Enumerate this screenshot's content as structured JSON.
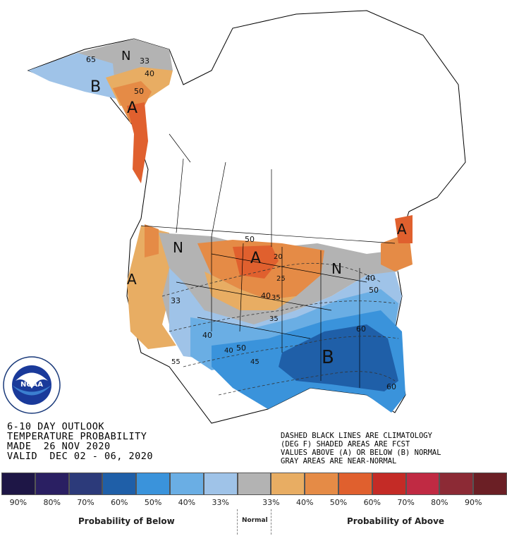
{
  "title": {
    "line1": "6-10 DAY OUTLOOK",
    "line2": "TEMPERATURE PROBABILITY",
    "line3": "MADE  26 NOV 2020",
    "line4": "VALID  DEC 02 - 06, 2020"
  },
  "note": {
    "line1": "DASHED BLACK LINES ARE CLIMATOLOGY",
    "line2": "(DEG F) SHADED AREAS ARE FCST",
    "line3": "VALUES ABOVE (A) OR BELOW (B) NORMAL",
    "line4": "GRAY AREAS ARE NEAR-NORMAL"
  },
  "logo": {
    "text": "NOAA",
    "ring_text": "NATIONAL OCEANIC AND ATMOSPHERIC ADMINISTRATION - U.S. DEPARTMENT OF COMMERCE"
  },
  "legend": {
    "colors": [
      "#1e1646",
      "#2a1f62",
      "#2c3a7a",
      "#1f5fa8",
      "#3a93db",
      "#6aaee4",
      "#9fc3e8",
      "#b3b3b3",
      "#e8ad63",
      "#e58b46",
      "#e0602e",
      "#c42b26",
      "#c02a43",
      "#8c2a35",
      "#6b1f25"
    ],
    "percents": [
      "90%",
      "80%",
      "70%",
      "60%",
      "50%",
      "40%",
      "33%",
      "33%",
      "40%",
      "50%",
      "60%",
      "70%",
      "80%",
      "90%"
    ],
    "below_label": "Probability of Below",
    "normal_label": "Normal",
    "above_label": "Probability of Above"
  },
  "map_labels": {
    "above_letter": "A",
    "below_letter": "B",
    "normal_letter": "N",
    "contours": [
      "65",
      "33",
      "40",
      "50",
      "20",
      "25",
      "40",
      "35",
      "33",
      "40",
      "50",
      "45",
      "55",
      "40",
      "50",
      "60",
      "35",
      "40",
      "50",
      "60"
    ]
  }
}
